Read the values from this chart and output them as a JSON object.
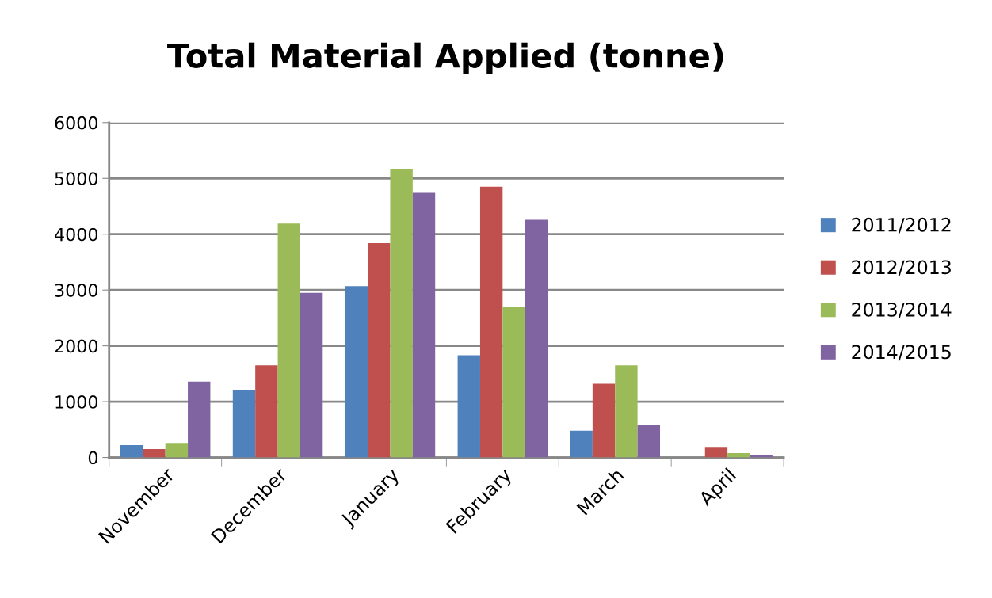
{
  "chart_data": {
    "type": "bar",
    "title": "Total Material Applied (tonne)",
    "categories": [
      "November",
      "December",
      "January",
      "February",
      "March",
      "April"
    ],
    "series": [
      {
        "name": "2011/2012",
        "color": "#4f81bd",
        "values": [
          220,
          1200,
          3070,
          1830,
          480,
          0
        ]
      },
      {
        "name": "2012/2013",
        "color": "#c0504d",
        "values": [
          150,
          1650,
          3840,
          4850,
          1320,
          190
        ]
      },
      {
        "name": "2013/2014",
        "color": "#9bbb59",
        "values": [
          260,
          4190,
          5170,
          2700,
          1650,
          80
        ]
      },
      {
        "name": "2014/2015",
        "color": "#8064a2",
        "values": [
          1360,
          2950,
          4740,
          4260,
          590,
          50
        ]
      }
    ],
    "ylim": [
      0,
      6000
    ],
    "yticks": [
      0,
      1000,
      2000,
      3000,
      4000,
      5000,
      6000
    ],
    "grid": "y",
    "legend": "right"
  }
}
